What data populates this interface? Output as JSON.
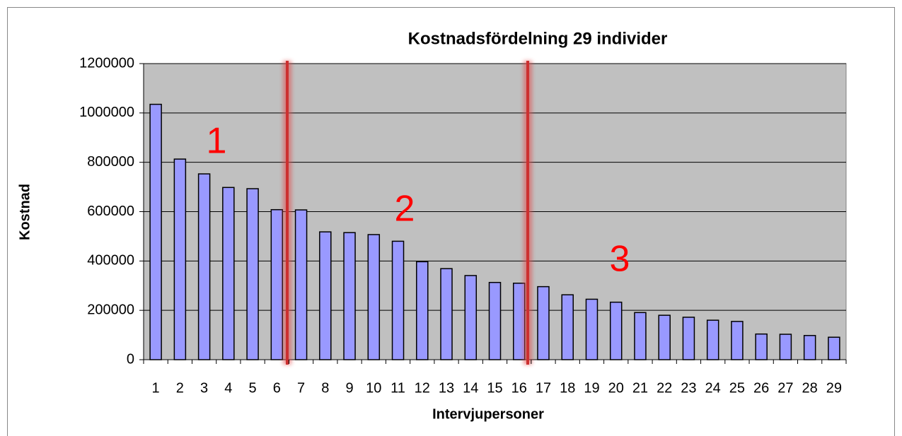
{
  "chart_data": {
    "type": "bar",
    "title": "Kostnadsfördelning 29 individer",
    "x_label": "Intervjupersoner",
    "y_label": "Kostnad",
    "categories": [
      "1",
      "2",
      "3",
      "4",
      "5",
      "6",
      "7",
      "8",
      "9",
      "10",
      "11",
      "12",
      "13",
      "14",
      "15",
      "16",
      "17",
      "18",
      "19",
      "20",
      "21",
      "22",
      "23",
      "24",
      "25",
      "26",
      "27",
      "28",
      "29"
    ],
    "values": [
      1035000,
      813000,
      753000,
      698000,
      693000,
      608000,
      607000,
      518000,
      515000,
      507000,
      480000,
      397000,
      369000,
      341000,
      313000,
      310000,
      296000,
      263000,
      245000,
      233000,
      191000,
      180000,
      172000,
      160000,
      155000,
      104000,
      103000,
      98000,
      91000
    ],
    "color": "#9999ff",
    "ylim": [
      0,
      1200000
    ],
    "yticks": [
      0,
      200000,
      400000,
      600000,
      800000,
      1000000,
      1200000
    ],
    "grid": true,
    "annotations": [
      "1",
      "2",
      "3"
    ]
  }
}
